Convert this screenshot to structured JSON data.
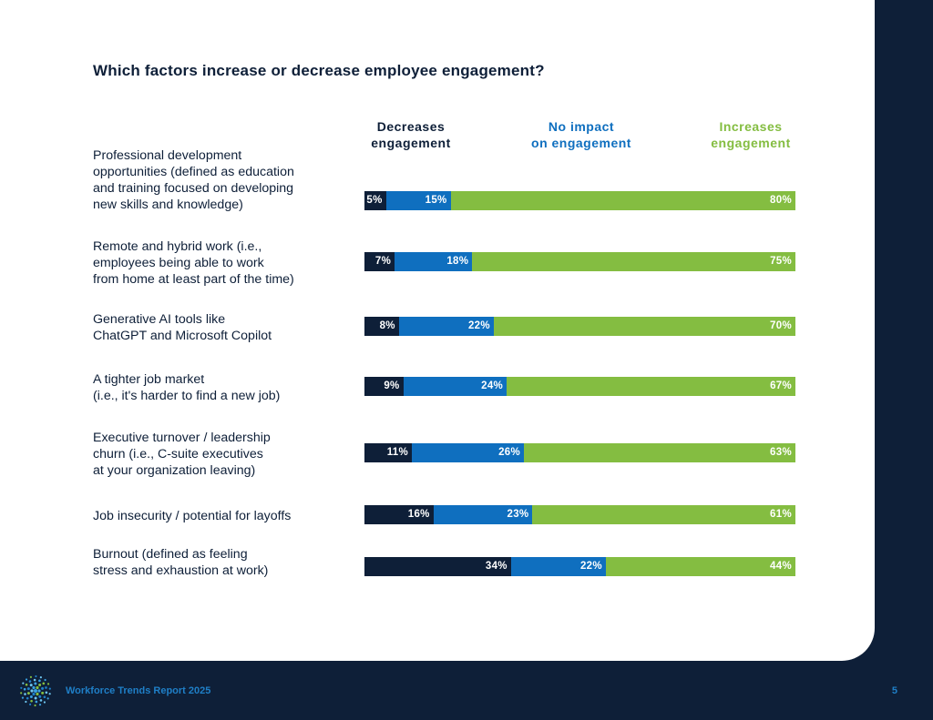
{
  "title": "Which factors increase or decrease employee engagement?",
  "columns": {
    "decreases": [
      "Decreases",
      "engagement"
    ],
    "no_impact": [
      "No impact",
      "on engagement"
    ],
    "increases": [
      "Increases",
      "engagement"
    ]
  },
  "colors": {
    "decreases": "#0e1f38",
    "no_impact": "#0f6fbf",
    "increases": "#84bd41",
    "no_impact_header": "#0f6fbf",
    "increases_header": "#84bd41"
  },
  "rows": [
    {
      "label_lines": [
        "Professional development",
        "opportunities (defined as education",
        "and training focused on developing",
        "new skills and knowledge)"
      ]
    },
    {
      "label_lines": [
        "Remote and hybrid work (i.e.,",
        "employees being able to work",
        "from home at least part of the time)"
      ]
    },
    {
      "label_lines": [
        "Generative AI tools like",
        "ChatGPT and Microsoft Copilot"
      ]
    },
    {
      "label_lines": [
        "A tighter job market",
        "(i.e., it's harder to find a new job)"
      ]
    },
    {
      "label_lines": [
        "Executive turnover / leadership",
        "churn (i.e., C-suite executives",
        "at your organization leaving)"
      ]
    },
    {
      "label_lines": [
        "Job insecurity / potential for layoffs"
      ]
    },
    {
      "label_lines": [
        "Burnout (defined as feeling",
        "stress and exhaustion at work)"
      ]
    }
  ],
  "chart_data": {
    "type": "bar",
    "orientation": "horizontal",
    "stacked": true,
    "categories": [
      "Professional development opportunities (defined as education and training focused on developing new skills and knowledge)",
      "Remote and hybrid work (i.e., employees being able to work from home at least part of the time)",
      "Generative AI tools like ChatGPT and Microsoft Copilot",
      "A tighter job market (i.e., it's harder to find a new job)",
      "Executive turnover / leadership churn (i.e., C-suite executives at your organization leaving)",
      "Job insecurity / potential for layoffs",
      "Burnout (defined as feeling stress and exhaustion at work)"
    ],
    "series": [
      {
        "name": "Decreases engagement",
        "values": [
          5,
          7,
          8,
          9,
          11,
          16,
          34
        ]
      },
      {
        "name": "No impact on engagement",
        "values": [
          15,
          18,
          22,
          24,
          26,
          23,
          22
        ]
      },
      {
        "name": "Increases engagement",
        "values": [
          80,
          75,
          70,
          67,
          63,
          61,
          44
        ]
      }
    ],
    "value_format": "%",
    "title": "Which factors increase or decrease employee engagement?",
    "legend_placement": "top"
  },
  "footer": {
    "report_title": "Workforce Trends Report 2025",
    "page_number": "5"
  }
}
